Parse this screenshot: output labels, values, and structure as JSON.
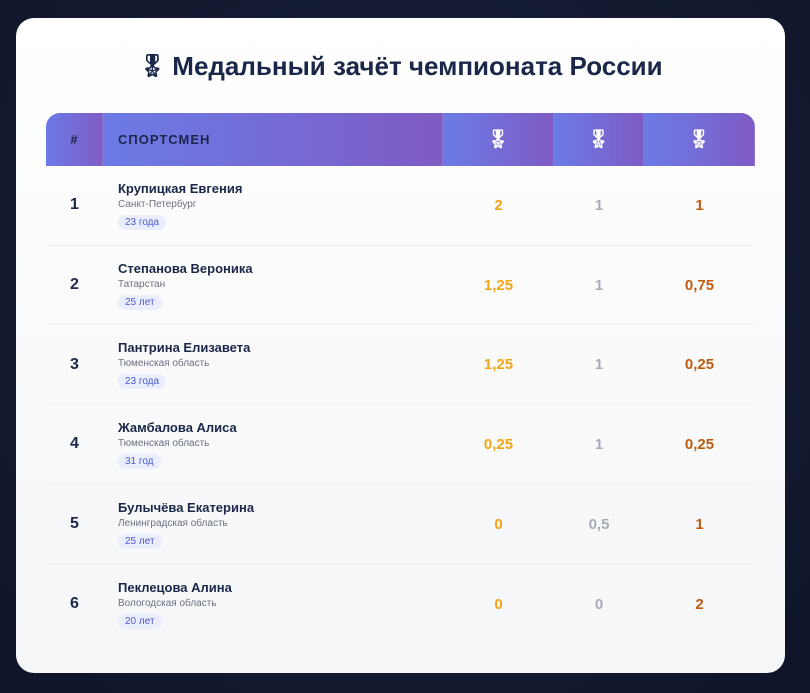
{
  "title": "Медальный зачёт чемпионата России",
  "icons": {
    "title": "medal-icon",
    "gold": "gold-medal-icon",
    "silver": "silver-medal-icon",
    "bronze": "bronze-medal-icon"
  },
  "colors": {
    "gold": "#f2a516",
    "silver": "#a7abb5",
    "bronze": "#bf5b0e",
    "header_start": "#6b7be6",
    "header_end": "#7f5bc4"
  },
  "table": {
    "headers": {
      "num": "#",
      "athlete": "СПОРТСМЕН"
    },
    "rows": [
      {
        "rank": "1",
        "name": "Крупицкая Евгения",
        "region": "Санкт-Петербург",
        "age": "23 года",
        "gold": "2",
        "silver": "1",
        "bronze": "1"
      },
      {
        "rank": "2",
        "name": "Степанова Вероника",
        "region": "Татарстан",
        "age": "25 лет",
        "gold": "1,25",
        "silver": "1",
        "bronze": "0,75"
      },
      {
        "rank": "3",
        "name": "Пантрина Елизавета",
        "region": "Тюменская область",
        "age": "23 года",
        "gold": "1,25",
        "silver": "1",
        "bronze": "0,25"
      },
      {
        "rank": "4",
        "name": "Жамбалова Алиса",
        "region": "Тюменская область",
        "age": "31 год",
        "gold": "0,25",
        "silver": "1",
        "bronze": "0,25"
      },
      {
        "rank": "5",
        "name": "Булычёва Екатерина",
        "region": "Ленинградская область",
        "age": "25 лет",
        "gold": "0",
        "silver": "0,5",
        "bronze": "1"
      },
      {
        "rank": "6",
        "name": "Пеклецова Алина",
        "region": "Вологодская область",
        "age": "20 лет",
        "gold": "0",
        "silver": "0",
        "bronze": "2"
      }
    ]
  }
}
